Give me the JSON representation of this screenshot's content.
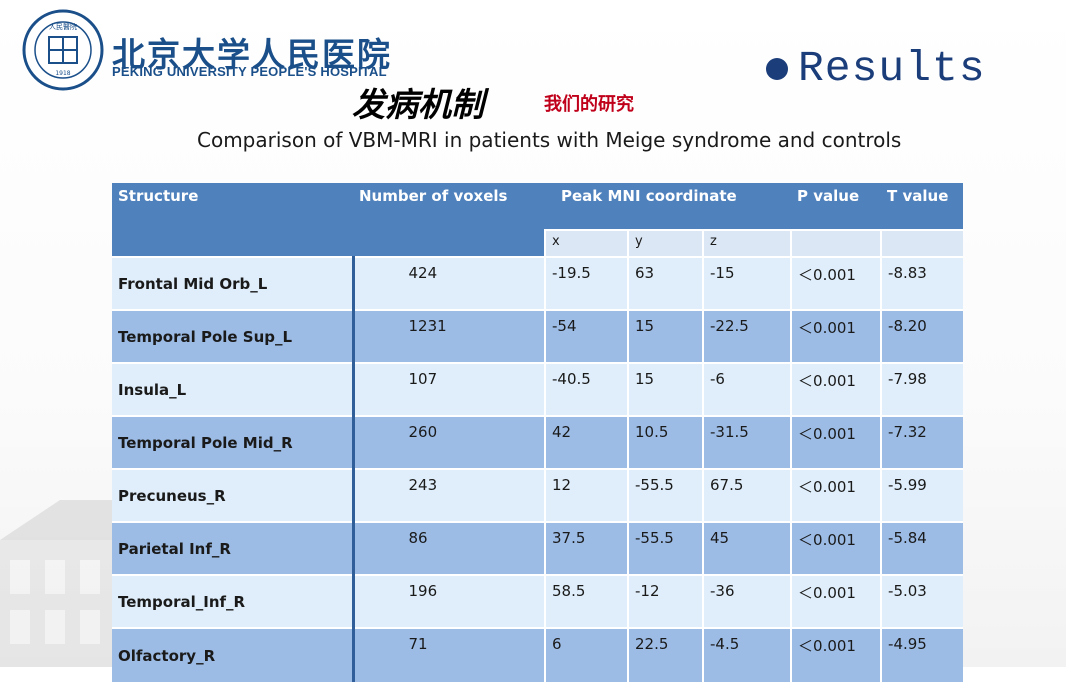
{
  "header": {
    "hospital_cn": "北京大学人民医院",
    "hospital_en": "PEKING UNIVERSITY PEOPLE'S HOSPITAL",
    "logo_cn": "人民醫院",
    "logo_year": "1918",
    "logo_ring_text": "PEKING UNIVERSITY PEOPLE'S HOSPITAL",
    "section_title": "发病机制",
    "section_subtitle": "我们的研究",
    "results_label": "Results"
  },
  "slide": {
    "title": "Comparison of VBM-MRI in patients with Meige syndrome and controls"
  },
  "table": {
    "headers": {
      "structure": "Structure",
      "voxels": "Number of voxels",
      "peak": "Peak MNI coordinate",
      "p": "P value",
      "t": "T value",
      "x": "x",
      "y": "y",
      "z": "z"
    },
    "rows": [
      {
        "structure": "Frontal Mid Orb_L",
        "voxels": "424",
        "x": "-19.5",
        "y": "63",
        "z": "-15",
        "p": "＜0.001",
        "t": "-8.83"
      },
      {
        "structure": "Temporal Pole Sup_L",
        "voxels": "1231",
        "x": "-54",
        "y": "15",
        "z": "-22.5",
        "p": "＜0.001",
        "t": "-8.20"
      },
      {
        "structure": "Insula_L",
        "voxels": "107",
        "x": "-40.5",
        "y": "15",
        "z": "-6",
        "p": "＜0.001",
        "t": "-7.98"
      },
      {
        "structure": "Temporal Pole Mid_R",
        "voxels": "260",
        "x": "42",
        "y": "10.5",
        "z": "-31.5",
        "p": "＜0.001",
        "t": "-7.32"
      },
      {
        "structure": "Precuneus_R",
        "voxels": "243",
        "x": "12",
        "y": "-55.5",
        "z": "67.5",
        "p": "＜0.001",
        "t": "-5.99"
      },
      {
        "structure": "Parietal Inf_R",
        "voxels": "86",
        "x": "37.5",
        "y": "-55.5",
        "z": "45",
        "p": "＜0.001",
        "t": "-5.84"
      },
      {
        "structure": "Temporal_Inf_R",
        "voxels": "196",
        "x": "58.5",
        "y": "-12",
        "z": "-36",
        "p": "＜0.001",
        "t": "-5.03"
      },
      {
        "structure": "Olfactory_R",
        "voxels": "71",
        "x": "6",
        "y": "22.5",
        "z": "-4.5",
        "p": "＜0.001",
        "t": "-4.95"
      }
    ]
  }
}
